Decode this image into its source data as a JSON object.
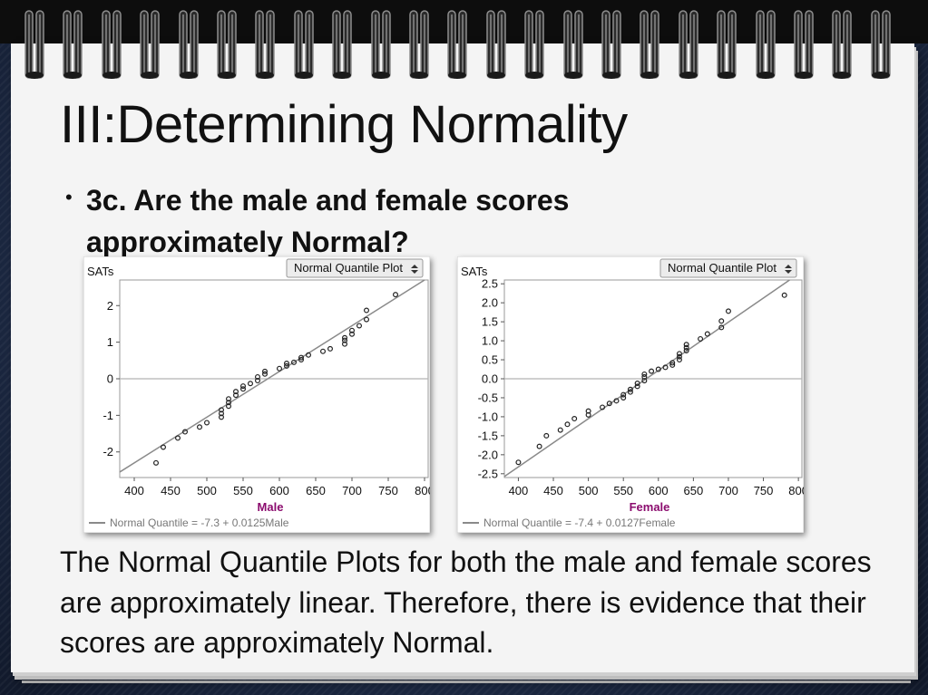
{
  "slide": {
    "title": "III:Determining Normality",
    "bullet": "3c. Are the male and female scores approximately Normal?",
    "conclusion": "The Normal Quantile Plots for both the male and female scores are approximately linear.  Therefore, there is evidence that their scores are approximately Normal."
  },
  "colors": {
    "xlabel": "#8b0c6e",
    "fit_line": "#8a8a8a",
    "points": "#222222"
  },
  "chart_data": [
    {
      "type": "scatter",
      "dropdown_label": "Normal Quantile Plot",
      "ylabel": "SATs",
      "xlabel": "Male",
      "x_ticks": [
        400,
        450,
        500,
        550,
        600,
        650,
        700,
        750,
        800
      ],
      "y_ticks": [
        "2",
        "1",
        "0",
        "-1",
        "-2"
      ],
      "y_tick_values": [
        2,
        1,
        0,
        -1,
        -2
      ],
      "xlim": [
        380,
        805
      ],
      "ylim": [
        -2.7,
        2.7
      ],
      "fit_line": {
        "intercept": -7.3,
        "slope": 0.0125
      },
      "legend": "Normal Quantile = -7.3 + 0.0125Male",
      "points": [
        [
          430,
          -2.3
        ],
        [
          440,
          -1.87
        ],
        [
          460,
          -1.62
        ],
        [
          470,
          -1.45
        ],
        [
          490,
          -1.32
        ],
        [
          500,
          -1.2
        ],
        [
          520,
          -1.05
        ],
        [
          520,
          -0.95
        ],
        [
          520,
          -0.85
        ],
        [
          530,
          -0.75
        ],
        [
          530,
          -0.65
        ],
        [
          530,
          -0.55
        ],
        [
          540,
          -0.45
        ],
        [
          540,
          -0.35
        ],
        [
          550,
          -0.28
        ],
        [
          550,
          -0.2
        ],
        [
          560,
          -0.13
        ],
        [
          570,
          -0.05
        ],
        [
          570,
          0.05
        ],
        [
          580,
          0.13
        ],
        [
          580,
          0.2
        ],
        [
          600,
          0.28
        ],
        [
          610,
          0.35
        ],
        [
          610,
          0.42
        ],
        [
          620,
          0.45
        ],
        [
          630,
          0.52
        ],
        [
          630,
          0.58
        ],
        [
          640,
          0.65
        ],
        [
          660,
          0.75
        ],
        [
          670,
          0.82
        ],
        [
          690,
          0.95
        ],
        [
          690,
          1.05
        ],
        [
          690,
          1.12
        ],
        [
          700,
          1.22
        ],
        [
          700,
          1.32
        ],
        [
          710,
          1.45
        ],
        [
          720,
          1.62
        ],
        [
          720,
          1.87
        ],
        [
          760,
          2.3
        ]
      ]
    },
    {
      "type": "scatter",
      "dropdown_label": "Normal Quantile Plot",
      "ylabel": "SATs",
      "xlabel": "Female",
      "x_ticks": [
        400,
        450,
        500,
        550,
        600,
        650,
        700,
        750,
        800
      ],
      "y_ticks": [
        "2.5",
        "2.0",
        "1.5",
        "1.0",
        "0.5",
        "0.0",
        "-0.5",
        "-1.0",
        "-1.5",
        "-2.0",
        "-2.5"
      ],
      "y_tick_values": [
        2.5,
        2.0,
        1.5,
        1.0,
        0.5,
        0.0,
        -0.5,
        -1.0,
        -1.5,
        -2.0,
        -2.5
      ],
      "xlim": [
        380,
        805
      ],
      "ylim": [
        -2.6,
        2.6
      ],
      "fit_line": {
        "intercept": -7.4,
        "slope": 0.0127
      },
      "legend": "Normal Quantile = -7.4 + 0.0127Female",
      "points": [
        [
          400,
          -2.2
        ],
        [
          430,
          -1.78
        ],
        [
          440,
          -1.5
        ],
        [
          460,
          -1.35
        ],
        [
          470,
          -1.2
        ],
        [
          480,
          -1.05
        ],
        [
          500,
          -0.95
        ],
        [
          500,
          -0.85
        ],
        [
          520,
          -0.75
        ],
        [
          530,
          -0.65
        ],
        [
          540,
          -0.58
        ],
        [
          550,
          -0.5
        ],
        [
          550,
          -0.42
        ],
        [
          560,
          -0.35
        ],
        [
          560,
          -0.28
        ],
        [
          570,
          -0.2
        ],
        [
          570,
          -0.12
        ],
        [
          580,
          -0.05
        ],
        [
          580,
          0.05
        ],
        [
          580,
          0.12
        ],
        [
          590,
          0.2
        ],
        [
          600,
          0.25
        ],
        [
          610,
          0.3
        ],
        [
          620,
          0.36
        ],
        [
          620,
          0.42
        ],
        [
          630,
          0.5
        ],
        [
          630,
          0.58
        ],
        [
          630,
          0.66
        ],
        [
          640,
          0.74
        ],
        [
          640,
          0.82
        ],
        [
          640,
          0.9
        ],
        [
          660,
          1.05
        ],
        [
          670,
          1.18
        ],
        [
          690,
          1.35
        ],
        [
          690,
          1.52
        ],
        [
          700,
          1.78
        ],
        [
          780,
          2.2
        ]
      ]
    }
  ]
}
